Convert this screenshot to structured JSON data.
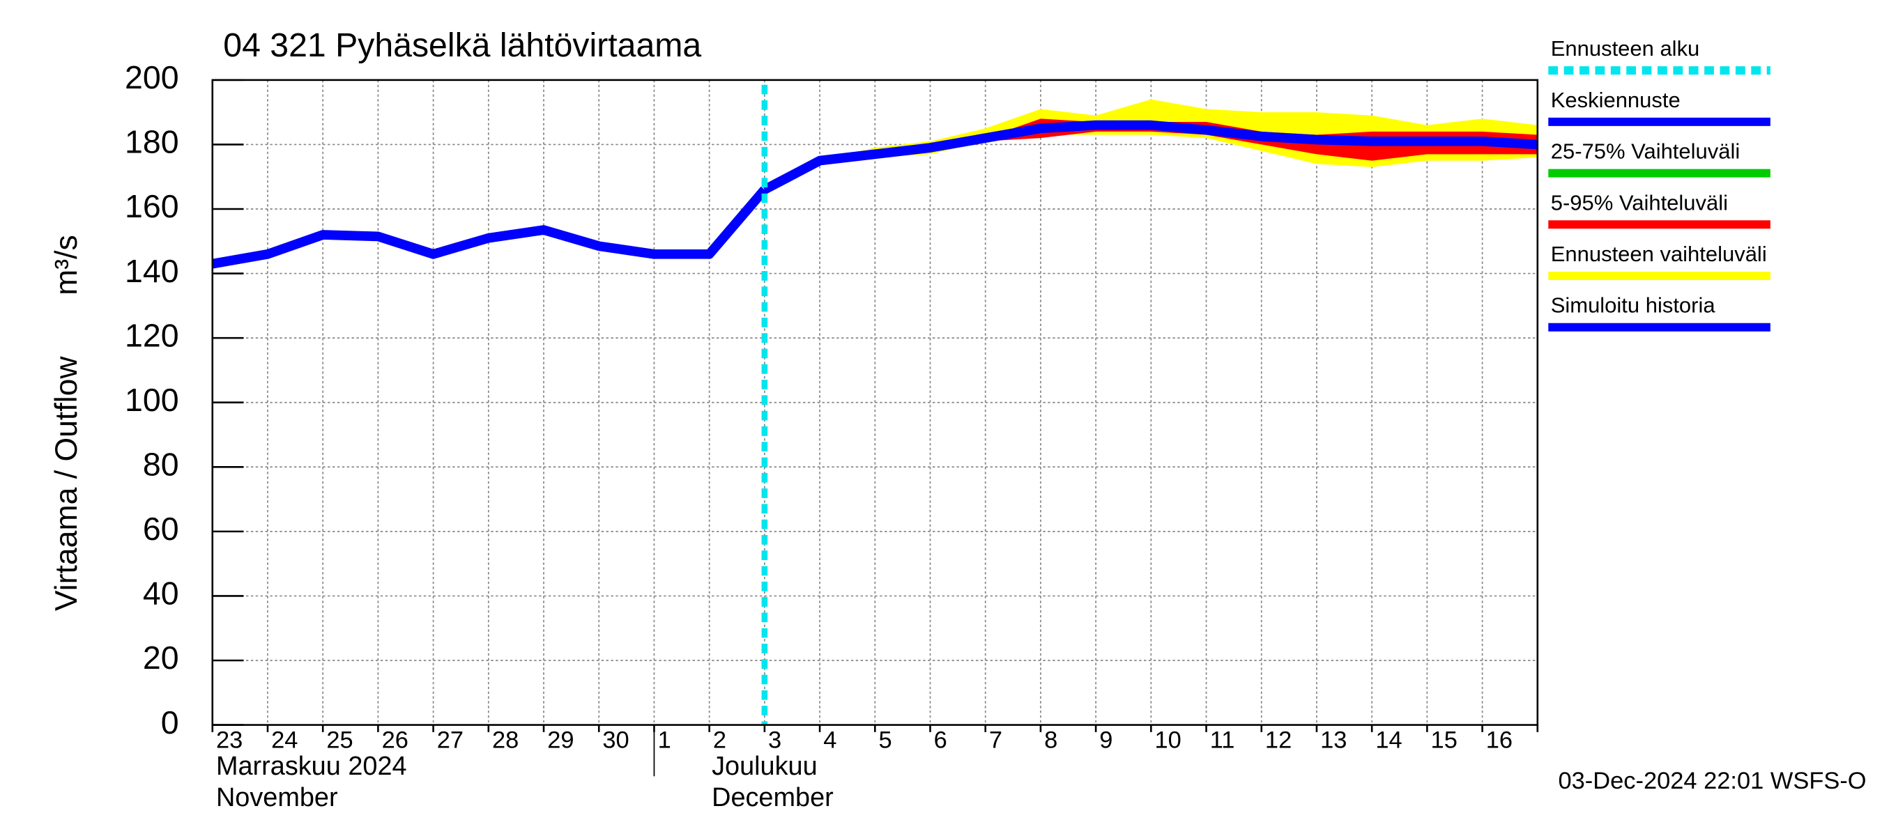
{
  "chart_data": {
    "type": "line",
    "title": "04 321 Pyhäselkä lähtövirtaama",
    "y_label": "Virtaama / Outflow",
    "y_unit": "m³/s",
    "categories": [
      "23",
      "24",
      "25",
      "26",
      "27",
      "28",
      "29",
      "30",
      "1",
      "2",
      "3",
      "4",
      "5",
      "6",
      "7",
      "8",
      "9",
      "10",
      "11",
      "12",
      "13",
      "14",
      "15",
      "16",
      null
    ],
    "months": [
      {
        "label": "Marraskuu 2024",
        "sublabel": "November",
        "start": 0
      },
      {
        "label": "Joulukuu",
        "sublabel": "December",
        "start": 8
      }
    ],
    "ylim": [
      0,
      200
    ],
    "yticks": [
      0,
      20,
      40,
      60,
      80,
      100,
      120,
      140,
      160,
      180,
      200
    ],
    "grid": true,
    "legend": "right",
    "series": [
      {
        "name": "Ennusteen alku",
        "color": "#00e5ee",
        "style": "dashed",
        "x": 10
      },
      {
        "name": "Keskiennuste",
        "color": "#0000ff",
        "values": [
          null,
          null,
          null,
          null,
          null,
          null,
          null,
          null,
          null,
          null,
          166,
          175,
          177,
          179,
          182,
          185,
          186,
          186,
          184.5,
          182.5,
          181.5,
          181,
          181,
          181,
          180
        ]
      },
      {
        "name": "25-75% Vaihteluväli",
        "color": "#00cc00",
        "low": [
          null,
          null,
          null,
          null,
          null,
          null,
          null,
          null,
          null,
          null,
          166,
          175,
          177,
          178.5,
          181.5,
          184,
          185,
          185,
          184,
          182,
          181,
          180,
          180,
          180,
          179
        ],
        "high": [
          null,
          null,
          null,
          null,
          null,
          null,
          null,
          null,
          null,
          null,
          166,
          175,
          177.5,
          179.5,
          182.5,
          186,
          186.5,
          186.5,
          185.5,
          183.5,
          182.5,
          182,
          182,
          182,
          181
        ]
      },
      {
        "name": "5-95% Vaihteluväli",
        "color": "#ff0000",
        "low": [
          null,
          null,
          null,
          null,
          null,
          null,
          null,
          null,
          null,
          null,
          166,
          175,
          177,
          178,
          181,
          182,
          184,
          184,
          183,
          180,
          177,
          175,
          177,
          177,
          177
        ],
        "high": [
          null,
          null,
          null,
          null,
          null,
          null,
          null,
          null,
          null,
          null,
          166,
          175,
          178,
          180,
          182,
          188,
          187,
          187,
          187,
          184,
          183,
          184,
          184,
          184,
          183
        ]
      },
      {
        "name": "Ennusteen vaihteluväli",
        "color": "#ffff00",
        "low": [
          null,
          null,
          null,
          null,
          null,
          null,
          null,
          null,
          null,
          null,
          166,
          175,
          176,
          177,
          181,
          183,
          183,
          183,
          182,
          178,
          174,
          173,
          175,
          175,
          176
        ],
        "high": [
          null,
          null,
          null,
          null,
          null,
          null,
          null,
          null,
          null,
          null,
          166,
          175,
          179,
          181,
          185,
          191,
          189,
          194,
          191,
          190,
          190,
          189,
          186,
          188,
          186
        ]
      },
      {
        "name": "Simuloitu historia",
        "color": "#0000ff",
        "values": [
          143,
          146,
          152,
          151.5,
          146,
          151,
          153.5,
          148.5,
          146,
          146,
          166,
          null,
          null,
          null,
          null,
          null,
          null,
          null,
          null,
          null,
          null,
          null,
          null,
          null,
          null
        ]
      }
    ],
    "footer": "03-Dec-2024 22:01 WSFS-O"
  }
}
